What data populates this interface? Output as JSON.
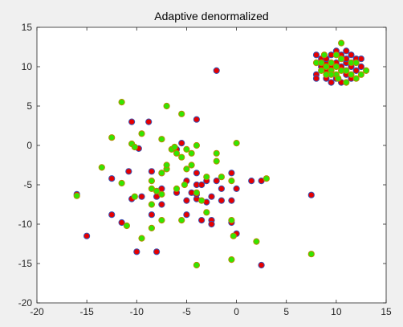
{
  "chart_data": {
    "type": "scatter",
    "title": "Adaptive denormalized",
    "xlabel": "",
    "ylabel": "",
    "xlim": [
      -20,
      15
    ],
    "ylim": [
      -20,
      15
    ],
    "xticks": [
      -20,
      -15,
      -10,
      -5,
      0,
      5,
      10,
      15
    ],
    "yticks": [
      -20,
      -15,
      -10,
      -5,
      0,
      5,
      10,
      15
    ],
    "grid": false,
    "colors": {
      "background": "#f0f0f0",
      "axes": "#ffffff",
      "axis_line": "#262626",
      "red_fill": "#e60000",
      "red_edge": "#3a4fb0",
      "green_fill": "#33e600",
      "green_edge": "#b58a00"
    },
    "series": [
      {
        "marker": "circle",
        "fill": "#e60000",
        "edge": "#3a4fb0",
        "points": [
          [
            -2.0,
            9.5
          ],
          [
            -10.5,
            3.0
          ],
          [
            -8.8,
            3.0
          ],
          [
            -4.0,
            3.3
          ],
          [
            -9.8,
            -0.4
          ],
          [
            -6.0,
            -0.5
          ],
          [
            -5.5,
            0.3
          ],
          [
            -12.5,
            -4.2
          ],
          [
            -10.8,
            -3.3
          ],
          [
            -8.5,
            -3.3
          ],
          [
            -7.5,
            -3.5
          ],
          [
            -4.0,
            -3.5
          ],
          [
            -5.0,
            -4.5
          ],
          [
            -3.0,
            -4.5
          ],
          [
            -2.0,
            -4.5
          ],
          [
            -0.5,
            -3.5
          ],
          [
            -10.5,
            -6.8
          ],
          [
            -9.5,
            -6.5
          ],
          [
            -8.0,
            -6.5
          ],
          [
            -7.5,
            -5.5
          ],
          [
            -6.0,
            -6.0
          ],
          [
            -4.5,
            -6.0
          ],
          [
            -4.0,
            -5.0
          ],
          [
            -3.5,
            -5.0
          ],
          [
            -2.5,
            -6.5
          ],
          [
            -1.5,
            -5.5
          ],
          [
            -3.0,
            -7.2
          ],
          [
            -5.0,
            -7.0
          ],
          [
            -4.0,
            -6.8
          ],
          [
            -4.0,
            -6.2
          ],
          [
            -12.5,
            -8.8
          ],
          [
            -11.5,
            -9.8
          ],
          [
            -8.5,
            -8.8
          ],
          [
            -7.5,
            -7.5
          ],
          [
            -5.0,
            -8.8
          ],
          [
            -3.5,
            -9.5
          ],
          [
            -2.5,
            -9.5
          ],
          [
            -2.5,
            -10.0
          ],
          [
            -1.5,
            -7.0
          ],
          [
            -0.5,
            -7.0
          ],
          [
            -0.5,
            -9.8
          ],
          [
            0.0,
            -11.2
          ],
          [
            0.0,
            -5.5
          ],
          [
            1.5,
            -4.5
          ],
          [
            2.5,
            -4.5
          ],
          [
            -16.0,
            -6.2
          ],
          [
            -15.0,
            -11.5
          ],
          [
            -10.0,
            -13.5
          ],
          [
            -8.0,
            -13.5
          ],
          [
            2.5,
            -15.2
          ],
          [
            7.5,
            -6.3
          ],
          [
            8.0,
            11.5
          ],
          [
            8.5,
            11.0
          ],
          [
            9.0,
            10.5
          ],
          [
            9.5,
            11.5
          ],
          [
            10.0,
            12.0
          ],
          [
            10.5,
            11.5
          ],
          [
            11.0,
            12.0
          ],
          [
            11.5,
            11.5
          ],
          [
            12.0,
            11.0
          ],
          [
            12.5,
            11.0
          ],
          [
            8.5,
            10.0
          ],
          [
            9.0,
            9.5
          ],
          [
            9.5,
            10.0
          ],
          [
            10.0,
            10.5
          ],
          [
            10.5,
            10.0
          ],
          [
            11.0,
            10.5
          ],
          [
            11.5,
            10.0
          ],
          [
            8.0,
            9.0
          ],
          [
            9.0,
            8.5
          ],
          [
            10.0,
            8.5
          ],
          [
            11.0,
            9.0
          ],
          [
            11.5,
            8.5
          ],
          [
            12.0,
            9.5
          ],
          [
            9.5,
            8.0
          ],
          [
            10.5,
            8.0
          ],
          [
            8.0,
            8.5
          ],
          [
            9.0,
            11.0
          ],
          [
            11.0,
            11.0
          ],
          [
            12.5,
            10.0
          ]
        ]
      },
      {
        "marker": "circle",
        "fill": "#33e600",
        "edge": "#b58a00",
        "points": [
          [
            -11.5,
            5.5
          ],
          [
            -7.0,
            5.0
          ],
          [
            -5.5,
            4.0
          ],
          [
            -9.5,
            1.5
          ],
          [
            -12.5,
            1.0
          ],
          [
            -10.5,
            0.2
          ],
          [
            -10.2,
            -0.2
          ],
          [
            -7.5,
            0.8
          ],
          [
            -6.5,
            -0.5
          ],
          [
            -6.2,
            -0.2
          ],
          [
            -6.0,
            -1.0
          ],
          [
            -5.5,
            -1.5
          ],
          [
            -5.0,
            -0.5
          ],
          [
            -4.5,
            -1.0
          ],
          [
            -4.0,
            0.0
          ],
          [
            -2.0,
            -1.0
          ],
          [
            -2.0,
            -2.0
          ],
          [
            0.0,
            0.3
          ],
          [
            -13.5,
            -2.8
          ],
          [
            -11.5,
            -4.8
          ],
          [
            -8.5,
            -4.5
          ],
          [
            -7.5,
            -3.5
          ],
          [
            -7.0,
            -3.0
          ],
          [
            -7.0,
            -2.5
          ],
          [
            -5.0,
            -3.0
          ],
          [
            -4.5,
            -2.5
          ],
          [
            -3.0,
            -4.0
          ],
          [
            -1.5,
            -4.0
          ],
          [
            -0.5,
            -4.5
          ],
          [
            3.0,
            -4.2
          ],
          [
            -8.5,
            -5.5
          ],
          [
            -8.0,
            -5.8
          ],
          [
            -7.5,
            -6.2
          ],
          [
            -10.2,
            -6.5
          ],
          [
            -6.0,
            -5.5
          ],
          [
            -5.2,
            -5.0
          ],
          [
            -4.0,
            -6.0
          ],
          [
            -3.5,
            -7.0
          ],
          [
            -3.0,
            -8.5
          ],
          [
            -8.5,
            -7.5
          ],
          [
            -8.5,
            -10.5
          ],
          [
            -7.5,
            -9.5
          ],
          [
            -11.0,
            -10.2
          ],
          [
            -9.5,
            -11.8
          ],
          [
            -5.5,
            -9.5
          ],
          [
            -0.5,
            -9.5
          ],
          [
            -0.3,
            -11.5
          ],
          [
            2.0,
            -12.2
          ],
          [
            -16.0,
            -6.4
          ],
          [
            -0.5,
            -14.5
          ],
          [
            -4.0,
            -15.2
          ],
          [
            7.5,
            -13.8
          ],
          [
            8.0,
            10.5
          ],
          [
            8.5,
            10.5
          ],
          [
            9.0,
            10.0
          ],
          [
            9.5,
            10.5
          ],
          [
            10.0,
            11.5
          ],
          [
            10.5,
            13.0
          ],
          [
            10.5,
            11.0
          ],
          [
            11.0,
            9.5
          ],
          [
            11.5,
            9.0
          ],
          [
            12.0,
            8.5
          ],
          [
            12.5,
            9.0
          ],
          [
            13.0,
            9.5
          ],
          [
            9.5,
            9.5
          ],
          [
            10.0,
            9.0
          ],
          [
            10.5,
            9.5
          ],
          [
            11.0,
            8.0
          ],
          [
            9.0,
            9.0
          ],
          [
            8.5,
            9.5
          ],
          [
            9.5,
            9.0
          ],
          [
            10.0,
            10.0
          ],
          [
            11.5,
            10.5
          ],
          [
            8.8,
            11.5
          ],
          [
            12.0,
            10.5
          ],
          [
            10.2,
            8.5
          ]
        ]
      }
    ]
  }
}
